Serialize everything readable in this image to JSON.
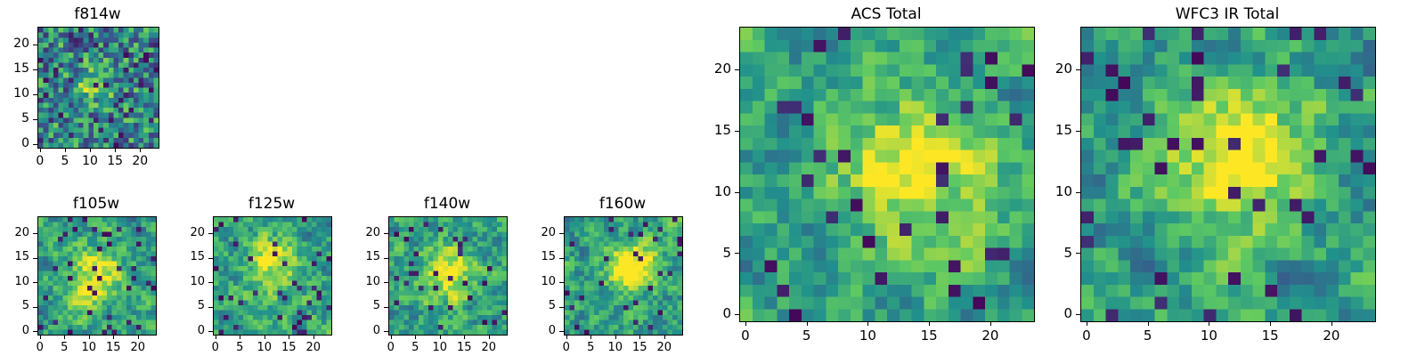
{
  "figure": {
    "background": "#ffffff",
    "colormap_name": "viridis",
    "viridis_stops": [
      "#440154",
      "#3b528b",
      "#21918c",
      "#5ec962",
      "#fde725"
    ]
  },
  "chart_data": [
    {
      "type": "heatmap",
      "title": "f814w",
      "size": "small",
      "grid": [
        24,
        24
      ],
      "xlim": [
        0,
        24
      ],
      "ylim": [
        0,
        24
      ],
      "x_ticks": [
        0,
        5,
        10,
        15,
        20
      ],
      "y_ticks": [
        0,
        5,
        10,
        15,
        20
      ],
      "colormap": "viridis",
      "legend": "none",
      "gridlines": false,
      "seed": 101,
      "noise_base": 0.15,
      "noise_range": 0.65,
      "smooth": 0,
      "dark_fraction": 0.08,
      "blob": {
        "x": 11,
        "y": 12,
        "amplitude": 0.34,
        "sigma": 2.3
      }
    },
    {
      "type": "heatmap",
      "title": "f105w",
      "size": "small",
      "grid": [
        24,
        24
      ],
      "xlim": [
        0,
        24
      ],
      "ylim": [
        0,
        24
      ],
      "x_ticks": [
        0,
        5,
        10,
        15,
        20
      ],
      "y_ticks": [
        0,
        5,
        10,
        15,
        20
      ],
      "colormap": "viridis",
      "legend": "none",
      "gridlines": false,
      "seed": 202,
      "noise_base": 0.2,
      "noise_range": 0.72,
      "smooth": 1,
      "dark_fraction": 0.06,
      "blob": {
        "x": 11,
        "y": 11,
        "amplitude": 0.42,
        "sigma": 4.0
      }
    },
    {
      "type": "heatmap",
      "title": "f125w",
      "size": "small",
      "grid": [
        24,
        24
      ],
      "xlim": [
        0,
        24
      ],
      "ylim": [
        0,
        24
      ],
      "x_ticks": [
        0,
        5,
        10,
        15,
        20
      ],
      "y_ticks": [
        0,
        5,
        10,
        15,
        20
      ],
      "colormap": "viridis",
      "legend": "none",
      "gridlines": false,
      "seed": 303,
      "noise_base": 0.2,
      "noise_range": 0.72,
      "smooth": 1,
      "dark_fraction": 0.06,
      "blob": {
        "x": 12,
        "y": 13,
        "amplitude": 0.38,
        "sigma": 3.8
      }
    },
    {
      "type": "heatmap",
      "title": "f140w",
      "size": "small",
      "grid": [
        24,
        24
      ],
      "xlim": [
        0,
        24
      ],
      "ylim": [
        0,
        24
      ],
      "x_ticks": [
        0,
        5,
        10,
        15,
        20
      ],
      "y_ticks": [
        0,
        5,
        10,
        15,
        20
      ],
      "colormap": "viridis",
      "legend": "none",
      "gridlines": false,
      "seed": 404,
      "noise_base": 0.2,
      "noise_range": 0.72,
      "smooth": 1,
      "dark_fraction": 0.06,
      "blob": {
        "x": 12,
        "y": 12,
        "amplitude": 0.46,
        "sigma": 3.5
      }
    },
    {
      "type": "heatmap",
      "title": "f160w",
      "size": "small",
      "grid": [
        24,
        24
      ],
      "xlim": [
        0,
        24
      ],
      "ylim": [
        0,
        24
      ],
      "x_ticks": [
        0,
        5,
        10,
        15,
        20
      ],
      "y_ticks": [
        0,
        5,
        10,
        15,
        20
      ],
      "colormap": "viridis",
      "legend": "none",
      "gridlines": false,
      "seed": 505,
      "noise_base": 0.2,
      "noise_range": 0.7,
      "smooth": 1,
      "dark_fraction": 0.06,
      "blob": {
        "x": 13,
        "y": 13,
        "amplitude": 0.72,
        "sigma": 3.2
      }
    },
    {
      "type": "heatmap",
      "title": "ACS Total",
      "size": "large",
      "grid": [
        24,
        24
      ],
      "xlim": [
        0,
        24
      ],
      "ylim": [
        0,
        24
      ],
      "x_ticks": [
        0,
        5,
        10,
        15,
        20
      ],
      "y_ticks": [
        0,
        5,
        10,
        15,
        20
      ],
      "colormap": "viridis",
      "legend": "none",
      "gridlines": false,
      "seed": 606,
      "noise_base": 0.22,
      "noise_range": 0.68,
      "smooth": 1,
      "dark_fraction": 0.055,
      "blob": {
        "x": 14,
        "y": 12,
        "amplitude": 0.45,
        "sigma": 4.3
      }
    },
    {
      "type": "heatmap",
      "title": "WFC3 IR Total",
      "size": "large",
      "grid": [
        24,
        24
      ],
      "xlim": [
        0,
        24
      ],
      "ylim": [
        0,
        24
      ],
      "x_ticks": [
        0,
        5,
        10,
        15,
        20
      ],
      "y_ticks": [
        0,
        5,
        10,
        15,
        20
      ],
      "colormap": "viridis",
      "legend": "none",
      "gridlines": false,
      "seed": 707,
      "noise_base": 0.22,
      "noise_range": 0.68,
      "smooth": 1,
      "dark_fraction": 0.055,
      "blob": {
        "x": 12,
        "y": 13,
        "amplitude": 0.5,
        "sigma": 4.0
      }
    }
  ]
}
